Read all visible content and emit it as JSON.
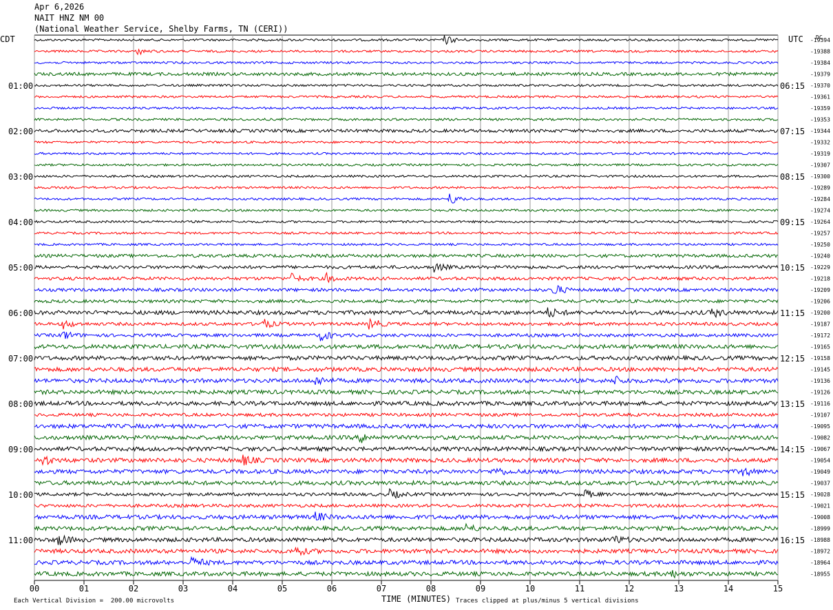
{
  "header": {
    "date": "Apr 6,2026",
    "station": "NAIT HNZ NM 00",
    "network": "(National Weather Service, Shelby Farms, TN (CERI))"
  },
  "left_label": "CDT",
  "right_label": "UTC",
  "corner_label": "DC",
  "xlabel": "TIME (MINUTES)",
  "footer_left": "Each Vertical Division =  200.00 microvolts",
  "footer_right": "Traces clipped at plus/minus 5 vertical divisions",
  "colors": {
    "trace_cycle": [
      "#000000",
      "#ff0000",
      "#0000ff",
      "#006400"
    ],
    "grid": "#999999",
    "axis": "#000000"
  },
  "chart_data": {
    "type": "line",
    "title": "NAIT HNZ NM 00",
    "xlim": [
      0,
      15
    ],
    "x_ticks": [
      "00",
      "01",
      "02",
      "03",
      "04",
      "05",
      "06",
      "07",
      "08",
      "09",
      "10",
      "11",
      "12",
      "13",
      "14",
      "15"
    ],
    "cdt_hour_labels": [
      "01:00",
      "02:00",
      "03:00",
      "04:00",
      "05:00",
      "06:00",
      "07:00",
      "08:00",
      "09:00",
      "10:00",
      "11:00"
    ],
    "utc_hour_labels": [
      "06:15",
      "07:15",
      "08:15",
      "09:15",
      "10:15",
      "11:15",
      "12:15",
      "13:15",
      "14:15",
      "15:15",
      "16:15"
    ],
    "dc_offsets": [
      -19394,
      -19388,
      -19384,
      -19379,
      -19370,
      -19361,
      -19359,
      -19353,
      -19344,
      -19332,
      -19319,
      -19307,
      -19300,
      -19289,
      -19284,
      -19274,
      -19264,
      -19257,
      -19250,
      -19240,
      -19229,
      -19218,
      -19209,
      -19206,
      -19200,
      -19187,
      -19172,
      -19165,
      -19158,
      -19145,
      -19136,
      -19126,
      -19116,
      -19107,
      -19095,
      -19082,
      -19067,
      -19054,
      -19049,
      -19037,
      -19028,
      -19021,
      -19008,
      -18999,
      -18988,
      -18972,
      -18964,
      -18955
    ],
    "trace_activity": [
      1,
      1,
      1,
      2,
      1,
      1,
      1,
      1,
      2,
      1,
      1,
      1,
      1,
      1,
      1,
      1,
      1,
      1,
      1,
      2,
      2,
      2,
      2,
      2,
      3,
      2,
      2,
      3,
      3,
      3,
      3,
      3,
      3,
      2,
      3,
      3,
      3,
      3,
      3,
      3,
      2,
      2,
      3,
      3,
      3,
      3,
      3,
      3
    ],
    "events": [
      {
        "trace": 0,
        "minute": 8.3,
        "amp": 3
      },
      {
        "trace": 1,
        "minute": 2.1,
        "amp": 2
      },
      {
        "trace": 14,
        "minute": 8.4,
        "amp": 4
      },
      {
        "trace": 20,
        "minute": 8.1,
        "amp": 3
      },
      {
        "trace": 21,
        "minute": 5.2,
        "amp": 3
      },
      {
        "trace": 21,
        "minute": 5.9,
        "amp": 3
      },
      {
        "trace": 22,
        "minute": 10.5,
        "amp": 4
      },
      {
        "trace": 24,
        "minute": 10.4,
        "amp": 3
      },
      {
        "trace": 24,
        "minute": 13.7,
        "amp": 3
      },
      {
        "trace": 25,
        "minute": 0.6,
        "amp": 3
      },
      {
        "trace": 25,
        "minute": 4.6,
        "amp": 4
      },
      {
        "trace": 25,
        "minute": 6.8,
        "amp": 4
      },
      {
        "trace": 26,
        "minute": 0.6,
        "amp": 3
      },
      {
        "trace": 26,
        "minute": 5.8,
        "amp": 4
      },
      {
        "trace": 30,
        "minute": 5.7,
        "amp": 3
      },
      {
        "trace": 30,
        "minute": 11.7,
        "amp": 3
      },
      {
        "trace": 35,
        "minute": 6.6,
        "amp": 3
      },
      {
        "trace": 37,
        "minute": 0.2,
        "amp": 3
      },
      {
        "trace": 37,
        "minute": 4.2,
        "amp": 4
      },
      {
        "trace": 38,
        "minute": 9.3,
        "amp": 3
      },
      {
        "trace": 38,
        "minute": 14.3,
        "amp": 3
      },
      {
        "trace": 40,
        "minute": 7.2,
        "amp": 3
      },
      {
        "trace": 40,
        "minute": 11.1,
        "amp": 3
      },
      {
        "trace": 42,
        "minute": 5.7,
        "amp": 3
      },
      {
        "trace": 43,
        "minute": 8.7,
        "amp": 3
      },
      {
        "trace": 44,
        "minute": 0.5,
        "amp": 4
      },
      {
        "trace": 44,
        "minute": 11.7,
        "amp": 3
      },
      {
        "trace": 45,
        "minute": 5.3,
        "amp": 3
      },
      {
        "trace": 46,
        "minute": 3.2,
        "amp": 4
      },
      {
        "trace": 47,
        "minute": 12.8,
        "amp": 3
      }
    ]
  }
}
